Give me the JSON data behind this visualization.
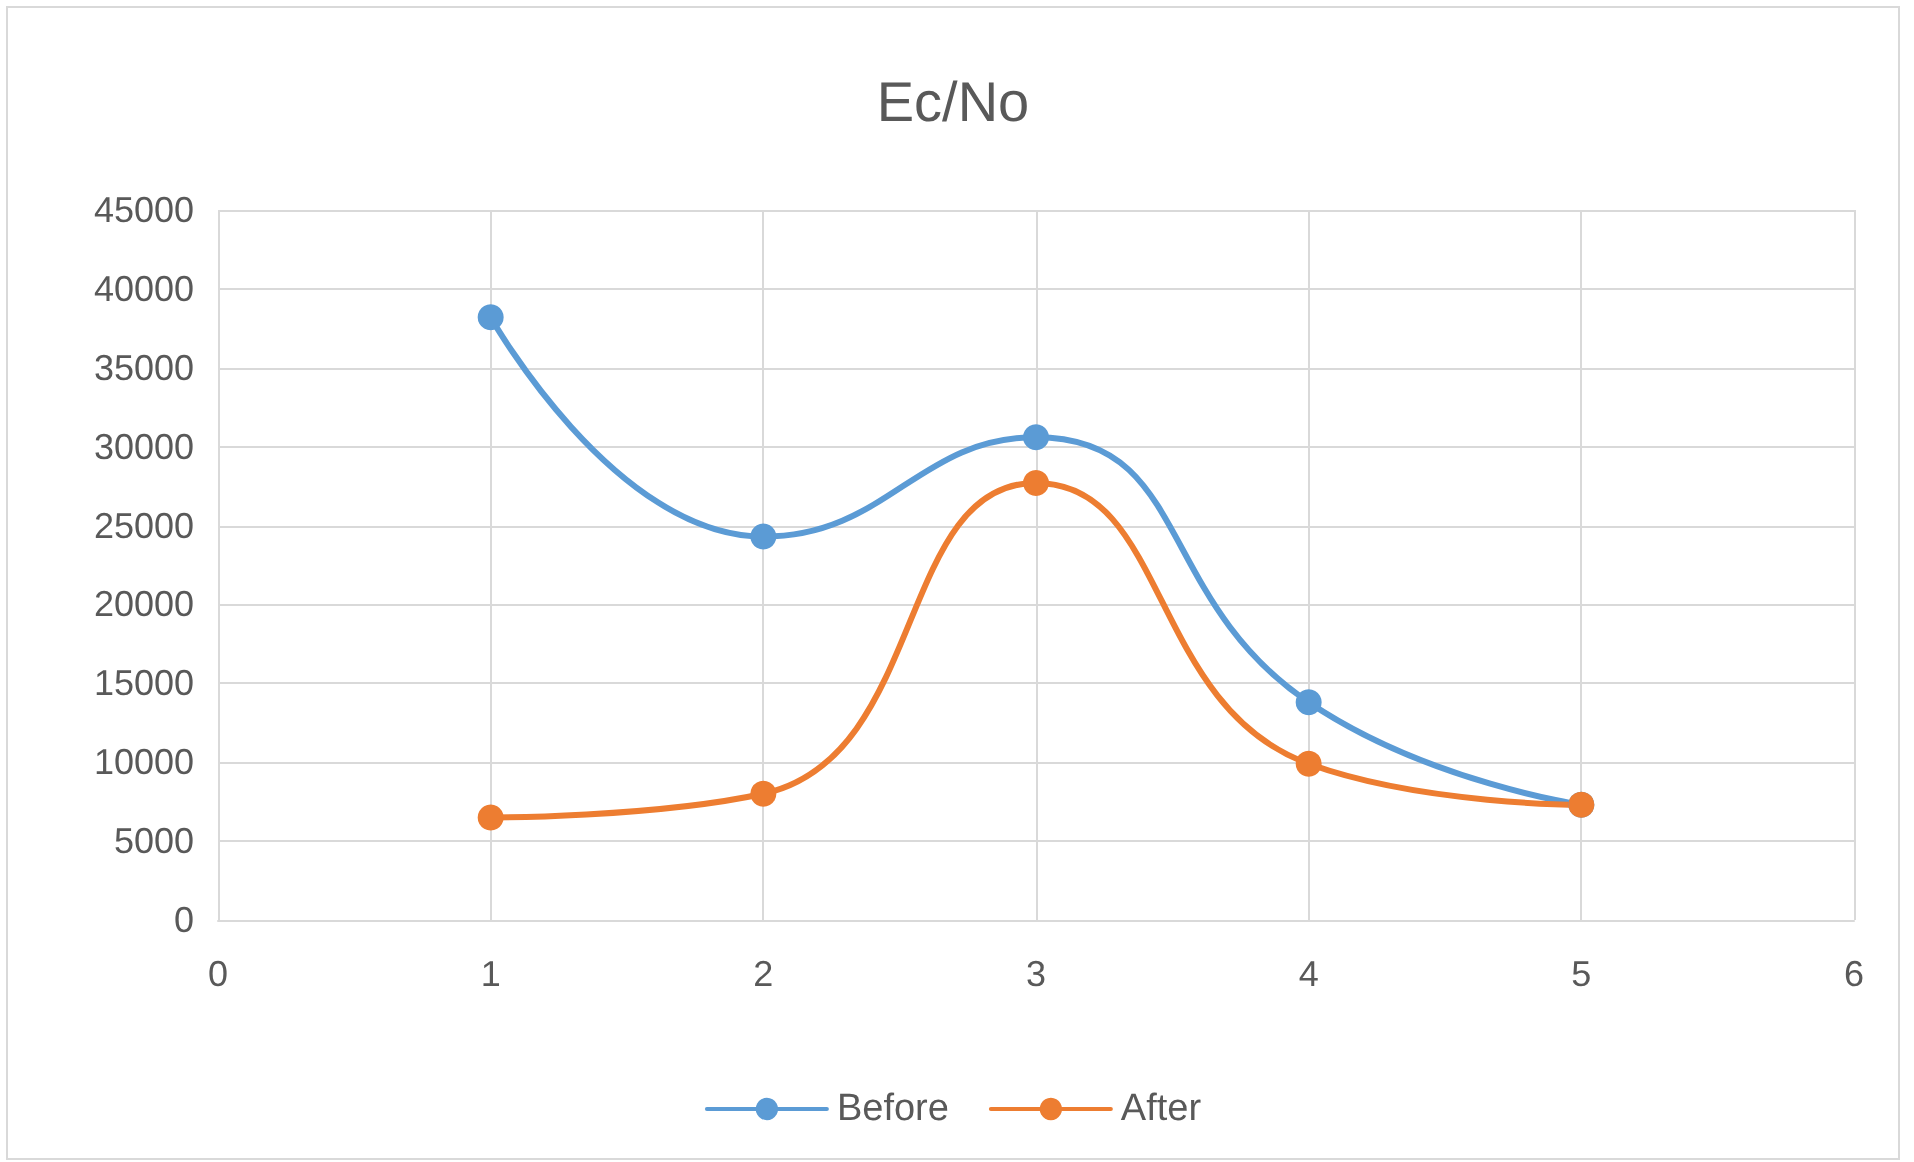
{
  "chart_data": {
    "type": "line",
    "title": "Ec/No",
    "x": [
      1,
      2,
      3,
      4,
      5
    ],
    "series": [
      {
        "name": "Before",
        "color": "#5b9bd5",
        "values": [
          38200,
          24300,
          30600,
          13800,
          7300
        ]
      },
      {
        "name": "After",
        "color": "#ed7d31",
        "values": [
          6500,
          8000,
          27700,
          9900,
          7300
        ]
      }
    ],
    "xlim": [
      0,
      6
    ],
    "xticks": [
      0,
      1,
      2,
      3,
      4,
      5,
      6
    ],
    "ylim": [
      0,
      45000
    ],
    "yticks": [
      0,
      5000,
      10000,
      15000,
      20000,
      25000,
      30000,
      35000,
      40000,
      45000
    ],
    "grid": true,
    "legend": "bottom",
    "marker": "circle",
    "line_style": "solid"
  }
}
